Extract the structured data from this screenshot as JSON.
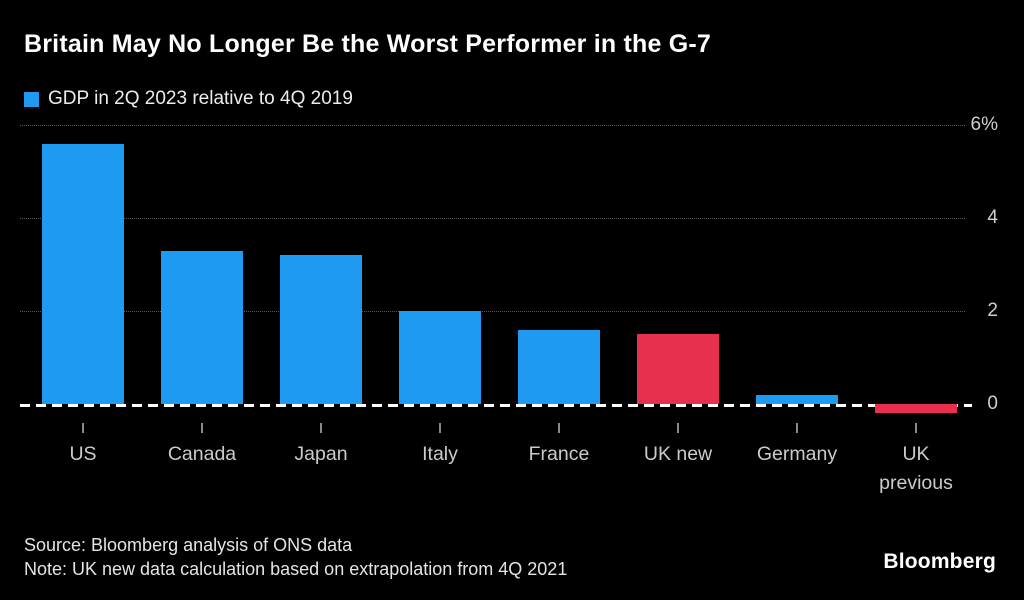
{
  "title": "Britain May No Longer Be the Worst Performer in the G-7",
  "legend": {
    "label": "GDP in 2Q 2023 relative to 4Q 2019",
    "swatch_color": "#1e9bf0"
  },
  "chart_data": {
    "type": "bar",
    "categories": [
      "US",
      "Canada",
      "Japan",
      "Italy",
      "France",
      "UK new",
      "Germany",
      "UK previous"
    ],
    "values": [
      5.6,
      3.3,
      3.2,
      2.0,
      1.6,
      1.5,
      0.2,
      -0.2
    ],
    "bar_colors": [
      "#1e9bf0",
      "#1e9bf0",
      "#1e9bf0",
      "#1e9bf0",
      "#1e9bf0",
      "#e8304e",
      "#1e9bf0",
      "#e8304e"
    ],
    "palette": {
      "blue": "#1e9bf0",
      "red": "#e8304e"
    },
    "title": "Britain May No Longer Be the Worst Performer in the G-7",
    "xlabel": "",
    "ylabel": "",
    "ylim": [
      -0.65,
      6.45
    ],
    "y_ticks": [
      {
        "value": 6,
        "label": "6%"
      },
      {
        "value": 4,
        "label": "4"
      },
      {
        "value": 2,
        "label": "2"
      },
      {
        "value": 0,
        "label": "0"
      }
    ],
    "grid": "horizontal dotted at 2, 4, 6",
    "zero_line": "white dashed",
    "legend_position": "top-left"
  },
  "footer": {
    "source": "Source: Bloomberg analysis of ONS data",
    "note": "Note: UK new data calculation based on extrapolation from 4Q 2021",
    "brand": "Bloomberg"
  }
}
